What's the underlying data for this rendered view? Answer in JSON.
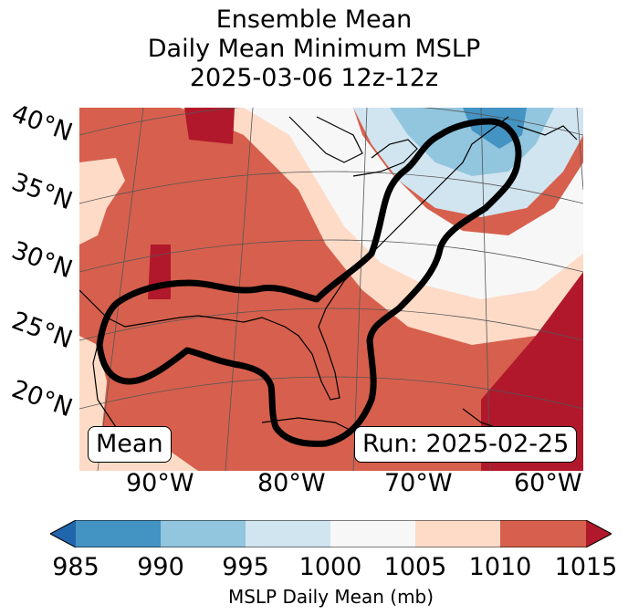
{
  "title": {
    "line1": "Ensemble Mean",
    "line2": "Daily Mean Minimum MSLP",
    "line3": "2025-03-06 12z-12z"
  },
  "map": {
    "lat_labels": [
      "40°N",
      "35°N",
      "30°N",
      "25°N",
      "20°N"
    ],
    "lon_labels": [
      "90°W",
      "80°W",
      "70°W",
      "60°W"
    ],
    "badge_left": "Mean",
    "badge_right": "Run: 2025-02-25"
  },
  "colorbar": {
    "label": "MSLP Daily Mean (mb)",
    "ticks": [
      "985",
      "990",
      "995",
      "1000",
      "1005",
      "1010",
      "1015"
    ],
    "bins": [
      {
        "range": "<985",
        "color": "#2166ac"
      },
      {
        "range": "985-990",
        "color": "#4393c3"
      },
      {
        "range": "990-995",
        "color": "#92c5de"
      },
      {
        "range": "995-1000",
        "color": "#d1e5f0"
      },
      {
        "range": "1000-1005",
        "color": "#f7f7f7"
      },
      {
        "range": "1005-1010",
        "color": "#fddbc7"
      },
      {
        "range": "1010-1015",
        "color": "#d6604d"
      },
      {
        "range": ">1015",
        "color": "#b2182b"
      }
    ]
  }
}
